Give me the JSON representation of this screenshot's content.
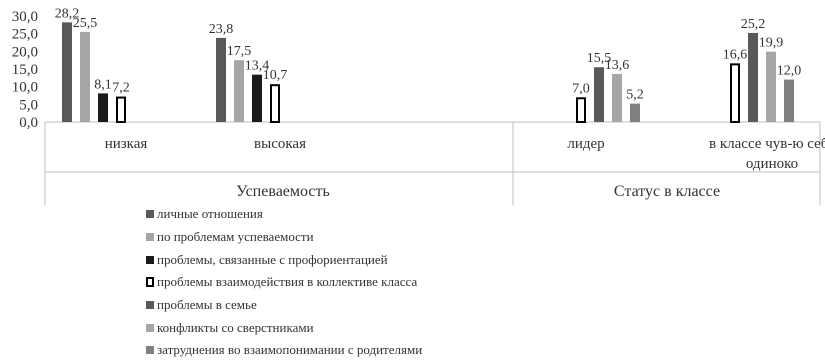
{
  "chart_data": {
    "type": "bar",
    "yticks": [
      "30,0",
      "25,0",
      "20,0",
      "15,0",
      "10,0",
      "5,0",
      "0,0"
    ],
    "ylim": [
      0,
      30
    ],
    "grid": false,
    "legend_position": "bottom",
    "groups": [
      {
        "label": "Успеваемость",
        "categories": [
          {
            "label": "низкая",
            "bars": [
              {
                "series": 0,
                "value": 28.2,
                "label": "28,2"
              },
              {
                "series": 1,
                "value": 25.5,
                "label": "25,5"
              },
              {
                "series": 2,
                "value": 8.1,
                "label": "8,1"
              },
              {
                "series": 3,
                "value": 7.2,
                "label": "7,2"
              }
            ]
          },
          {
            "label": "высокая",
            "bars": [
              {
                "series": 0,
                "value": 23.8,
                "label": "23,8"
              },
              {
                "series": 1,
                "value": 17.5,
                "label": "17,5"
              },
              {
                "series": 2,
                "value": 13.4,
                "label": "13,4"
              },
              {
                "series": 3,
                "value": 10.7,
                "label": "10,7"
              }
            ]
          }
        ]
      },
      {
        "label": "Статус в классе",
        "categories": [
          {
            "label": "лидер",
            "bars": [
              {
                "series": 3,
                "value": 7.0,
                "label": "7,0"
              },
              {
                "series": 4,
                "value": 15.5,
                "label": "15,5"
              },
              {
                "series": 5,
                "value": 13.6,
                "label": "13,6"
              },
              {
                "series": 6,
                "value": 5.2,
                "label": "5,2"
              }
            ]
          },
          {
            "label": "в классе чув-ю себя одиноко",
            "bars": [
              {
                "series": 3,
                "value": 16.6,
                "label": "16,6"
              },
              {
                "series": 4,
                "value": 25.2,
                "label": "25,2"
              },
              {
                "series": 5,
                "value": 19.9,
                "label": "19,9"
              },
              {
                "series": 6,
                "value": 12.0,
                "label": "12,0"
              }
            ]
          }
        ]
      }
    ],
    "series": [
      {
        "name": "личные отношения",
        "color": "#595959",
        "style": "solid"
      },
      {
        "name": "по проблемам успеваемости",
        "color": "#a6a6a6",
        "style": "solid"
      },
      {
        "name": "проблемы, связанные с профориентацией",
        "color": "#1a1a1a",
        "style": "solid"
      },
      {
        "name": "проблемы взаимодействия в коллективе класса",
        "color": "#000000",
        "style": "outline"
      },
      {
        "name": "проблемы в семье",
        "color": "#595959",
        "style": "solid"
      },
      {
        "name": "конфликты со сверстниками",
        "color": "#a6a6a6",
        "style": "solid"
      },
      {
        "name": "затруднения во взаимопонимании с родителями",
        "color": "#7f7f7f",
        "style": "solid"
      }
    ]
  }
}
